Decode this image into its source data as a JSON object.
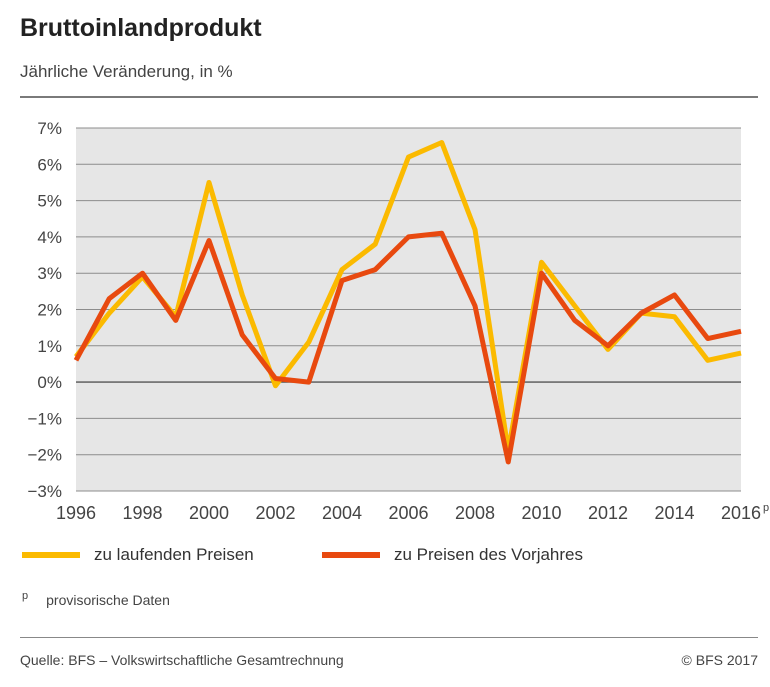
{
  "header": {
    "title": "Bruttoinlandprodukt",
    "subtitle": "Jährliche Veränderung, in %"
  },
  "legend": {
    "items": [
      {
        "label": "zu laufenden Preisen",
        "color": "#FBBA00"
      },
      {
        "label": "zu Preisen des Vorjahres",
        "color": "#E8490F"
      }
    ]
  },
  "footnote": {
    "marker": "p",
    "text": "provisorische Daten"
  },
  "footer": {
    "source": "Quelle: BFS – Volkswirtschaftliche Gesamtrechnung",
    "copyright": "© BFS 2017"
  },
  "chart_data": {
    "type": "line",
    "title": "Bruttoinlandprodukt",
    "subtitle": "Jährliche Veränderung, in %",
    "xlabel": "",
    "ylabel": "",
    "x": [
      1996,
      1997,
      1998,
      1999,
      2000,
      2001,
      2002,
      2003,
      2004,
      2005,
      2006,
      2007,
      2008,
      2009,
      2010,
      2011,
      2012,
      2013,
      2014,
      2015,
      2016
    ],
    "xlim": [
      1996,
      2016
    ],
    "ylim": [
      -3,
      7
    ],
    "x_ticks": [
      1996,
      1998,
      2000,
      2002,
      2004,
      2006,
      2008,
      2010,
      2012,
      2014,
      2016
    ],
    "x_tick_labels": [
      "1996",
      "1998",
      "2000",
      "2002",
      "2004",
      "2006",
      "2008",
      "2010",
      "2012",
      "2014",
      "2016"
    ],
    "last_tick_marker": "p",
    "y_ticks": [
      -3,
      -2,
      -1,
      0,
      1,
      2,
      3,
      4,
      5,
      6,
      7
    ],
    "y_tick_labels": [
      "−3%",
      "−2%",
      "−1%",
      "0%",
      "1%",
      "2%",
      "3%",
      "4%",
      "5%",
      "6%",
      "7%"
    ],
    "grid": true,
    "background_color": "#E6E6E6",
    "legend_position": "bottom",
    "series": [
      {
        "name": "zu laufenden Preisen",
        "color": "#FBBA00",
        "values": [
          0.7,
          1.9,
          2.9,
          1.8,
          5.5,
          2.4,
          -0.1,
          1.1,
          3.1,
          3.8,
          6.2,
          6.6,
          4.2,
          -1.9,
          3.3,
          2.1,
          0.9,
          1.9,
          1.8,
          0.6,
          0.8
        ]
      },
      {
        "name": "zu Preisen des Vorjahres",
        "color": "#E8490F",
        "values": [
          0.6,
          2.3,
          3.0,
          1.7,
          3.9,
          1.3,
          0.1,
          0.0,
          2.8,
          3.1,
          4.0,
          4.1,
          2.1,
          -2.2,
          3.0,
          1.7,
          1.0,
          1.9,
          2.4,
          1.2,
          1.4
        ]
      }
    ]
  }
}
